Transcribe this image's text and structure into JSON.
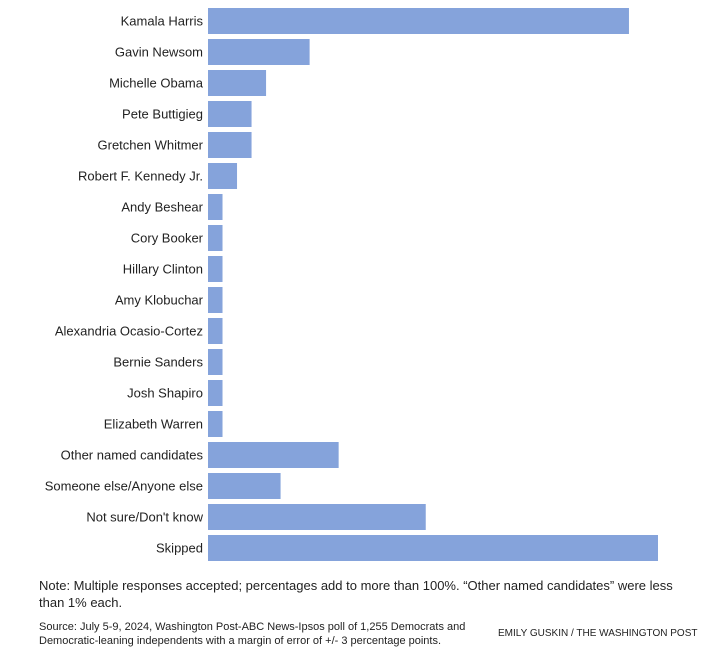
{
  "chart_data": {
    "type": "bar",
    "orientation": "horizontal",
    "categories": [
      "Kamala Harris",
      "Gavin Newsom",
      "Michelle Obama",
      "Pete Buttigieg",
      "Gretchen Whitmer",
      "Robert F. Kennedy Jr.",
      "Andy Beshear",
      "Cory Booker",
      "Hillary Clinton",
      "Amy Klobuchar",
      "Alexandria Ocasio-Cortez",
      "Bernie Sanders",
      "Josh Shapiro",
      "Elizabeth Warren",
      "Other named candidates",
      "Someone else/Anyone else",
      "Not sure/Don't know",
      "Skipped"
    ],
    "values": [
      29,
      7,
      4,
      3,
      3,
      2,
      1,
      1,
      1,
      1,
      1,
      1,
      1,
      1,
      9,
      5,
      15,
      31
    ],
    "xlim": [
      0,
      31
    ],
    "bar_color": "#85a3db",
    "grid": false
  },
  "note": "Note: Multiple responses accepted; percentages add to more than 100%. “Other named candidates” were less than 1% each.",
  "source": "Source: July 5-9, 2024, Washington Post-ABC News-Ipsos poll of 1,255 Democrats and Democratic-leaning independents with a margin of error of +/- 3 percentage points.",
  "credit": "EMILY GUSKIN / THE WASHINGTON POST"
}
